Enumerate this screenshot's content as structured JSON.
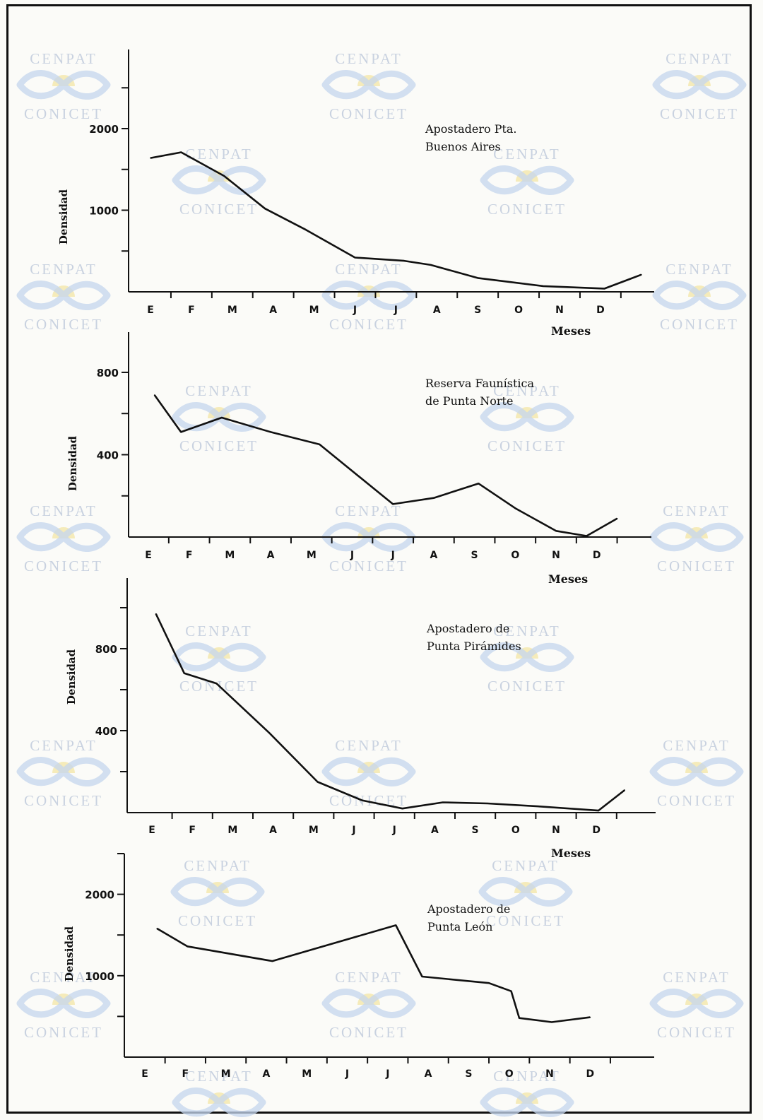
{
  "watermark": {
    "line1": "CENPAT",
    "line2": "CONICET",
    "text_color": "#c9d2e0",
    "ribbon_color": "#c4d6ee",
    "sun_color": "#f3e6a6"
  },
  "chart_data": [
    {
      "type": "line",
      "title": [
        "Apostadero Pta.",
        "Buenos  Aires"
      ],
      "ylabel": "Densidad",
      "xlabel": "Meses",
      "x": [
        "E",
        "F",
        "M",
        "A",
        "M",
        "J",
        "J",
        "A",
        "S",
        "O",
        "N",
        "D"
      ],
      "yticks": [
        2000,
        1000
      ],
      "ylim": [
        0,
        2900
      ],
      "series": [
        {
          "values": [
            [
              0,
              1640
            ],
            [
              0.75,
              1710
            ],
            [
              1.8,
              1420
            ],
            [
              2.8,
              1020
            ],
            [
              3.8,
              760
            ],
            [
              5.0,
              420
            ],
            [
              6.2,
              380
            ],
            [
              6.85,
              330
            ],
            [
              8.0,
              170
            ],
            [
              9.6,
              70
            ],
            [
              11.1,
              40
            ],
            [
              12.0,
              210
            ]
          ]
        }
      ]
    },
    {
      "type": "line",
      "title": [
        "Reserva Faunística",
        "de Punta Norte"
      ],
      "ylabel": "Densidad",
      "xlabel": "Meses",
      "x": [
        "E",
        "F",
        "M",
        "A",
        "M",
        "J",
        "J",
        "A",
        "S",
        "O",
        "N",
        "D"
      ],
      "yticks": [
        800,
        400
      ],
      "ylim": [
        0,
        990
      ],
      "series": [
        {
          "values": [
            [
              0.15,
              690
            ],
            [
              0.8,
              510
            ],
            [
              1.8,
              580
            ],
            [
              3.0,
              510
            ],
            [
              4.2,
              450
            ],
            [
              6.0,
              160
            ],
            [
              7.0,
              190
            ],
            [
              8.1,
              260
            ],
            [
              9.0,
              140
            ],
            [
              10.0,
              30
            ],
            [
              10.75,
              5
            ],
            [
              11.5,
              90
            ]
          ]
        }
      ]
    },
    {
      "type": "line",
      "title": [
        "Apostadero de",
        "Punta Pirámides"
      ],
      "ylabel": "Densidad",
      "xlabel": "Meses",
      "x": [
        "E",
        "F",
        "M",
        "A",
        "M",
        "J",
        "J",
        "A",
        "S",
        "O",
        "N",
        "D"
      ],
      "yticks": [
        800,
        400
      ],
      "ylim": [
        0,
        1130
      ],
      "series": [
        {
          "values": [
            [
              0.1,
              970
            ],
            [
              0.8,
              680
            ],
            [
              1.6,
              630
            ],
            [
              2.9,
              390
            ],
            [
              4.1,
              150
            ],
            [
              5.2,
              60
            ],
            [
              6.2,
              20
            ],
            [
              7.2,
              50
            ],
            [
              8.3,
              45
            ],
            [
              9.6,
              30
            ],
            [
              11.05,
              10
            ],
            [
              11.7,
              110
            ]
          ]
        }
      ]
    },
    {
      "type": "line",
      "title": [
        "Apostadero de",
        "Punta León"
      ],
      "ylabel": "Densidad",
      "xlabel": "",
      "x": [
        "E",
        "F",
        "M",
        "A",
        "M",
        "J",
        "J",
        "A",
        "S",
        "O",
        "N",
        "D"
      ],
      "yticks": [
        2000,
        1000
      ],
      "ylim": [
        0,
        2500
      ],
      "series": [
        {
          "values": [
            [
              0.3,
              1580
            ],
            [
              1.05,
              1360
            ],
            [
              3.15,
              1180
            ],
            [
              6.2,
              1620
            ],
            [
              6.85,
              990
            ],
            [
              8.5,
              910
            ],
            [
              9.05,
              810
            ],
            [
              9.25,
              480
            ],
            [
              10.05,
              430
            ],
            [
              11.0,
              490
            ]
          ]
        }
      ]
    }
  ]
}
